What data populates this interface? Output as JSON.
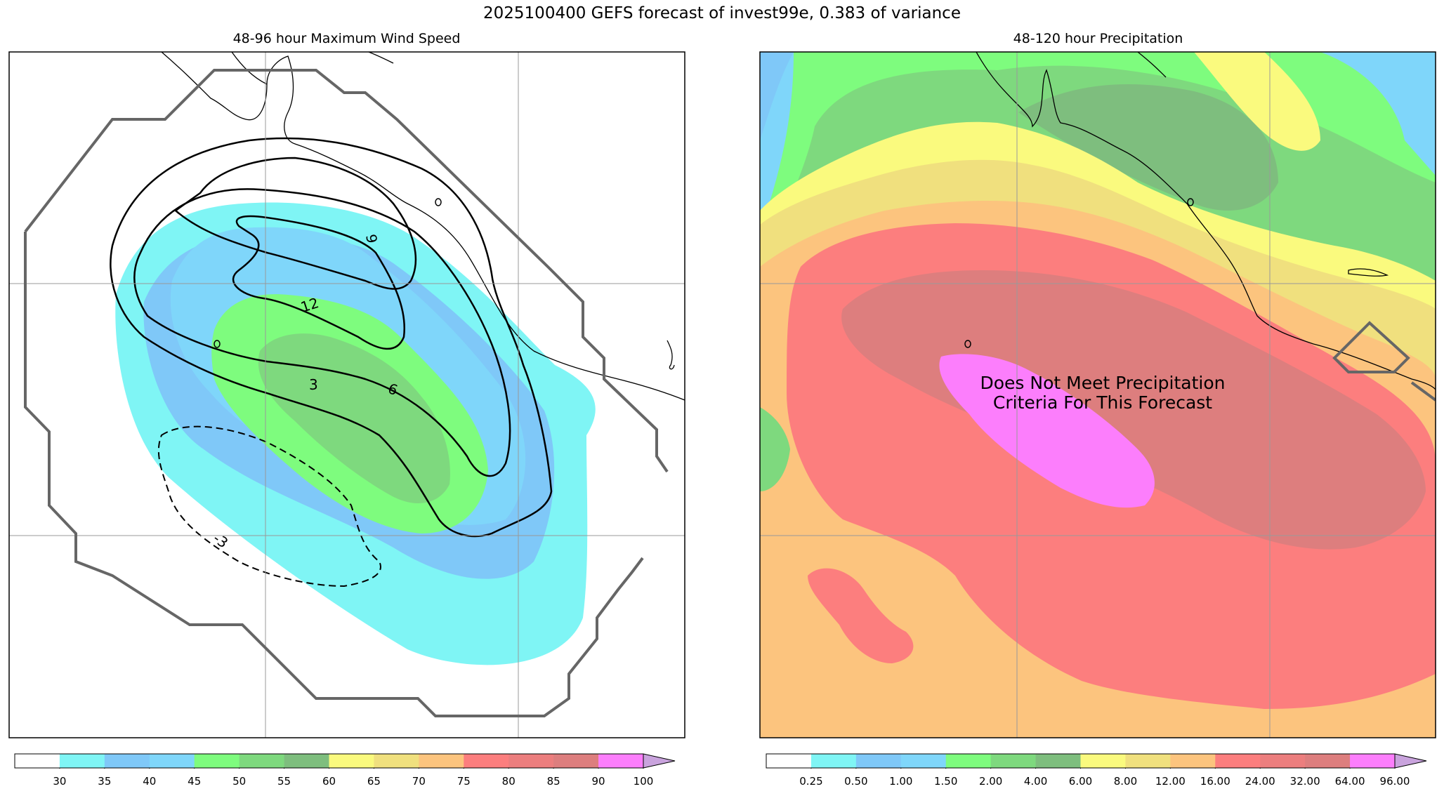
{
  "figure": {
    "title": "2025100400 GEFS forecast of invest99e, 0.383 of variance"
  },
  "left_panel": {
    "title": "48-96 hour Maximum Wind Speed",
    "contour_labels": [
      "9",
      "12",
      "3",
      "6",
      "-3"
    ]
  },
  "right_panel": {
    "title": "48-120 hour Precipitation",
    "overlay_text_line1": "Does Not Meet Precipitation",
    "overlay_text_line2": "Criteria For This Forecast"
  },
  "chart_data": [
    {
      "type": "map-contour",
      "title": "48-96 hour Maximum Wind Speed",
      "colorbar": {
        "ticks": [
          "30",
          "35",
          "40",
          "45",
          "50",
          "55",
          "60",
          "65",
          "70",
          "75",
          "80",
          "85",
          "90",
          "100"
        ],
        "colors": [
          "#ffffff",
          "#7ff5f5",
          "#7fc8f8",
          "#7fd6fa",
          "#7efc7e",
          "#7ed97e",
          "#7ebe7e",
          "#fafa7e",
          "#f0e07e",
          "#fcc47e",
          "#fc7e7e",
          "#ec7e7e",
          "#dd7e7e",
          "#fc7efc",
          "#c9a3dd"
        ],
        "extend": "max"
      }
    },
    {
      "type": "map-contour",
      "title": "48-120 hour Precipitation",
      "colorbar": {
        "ticks": [
          "0.25",
          "0.50",
          "1.00",
          "1.50",
          "2.00",
          "4.00",
          "6.00",
          "8.00",
          "12.00",
          "16.00",
          "24.00",
          "32.00",
          "64.00",
          "96.00"
        ],
        "colors": [
          "#ffffff",
          "#7ff5f5",
          "#7fc8f8",
          "#7fd6fa",
          "#7efc7e",
          "#7ed97e",
          "#7ebe7e",
          "#fafa7e",
          "#f0e07e",
          "#fcc47e",
          "#fc7e7e",
          "#ec7e7e",
          "#dd7e7e",
          "#fc7efc",
          "#c9a3dd"
        ],
        "extend": "max"
      }
    }
  ]
}
